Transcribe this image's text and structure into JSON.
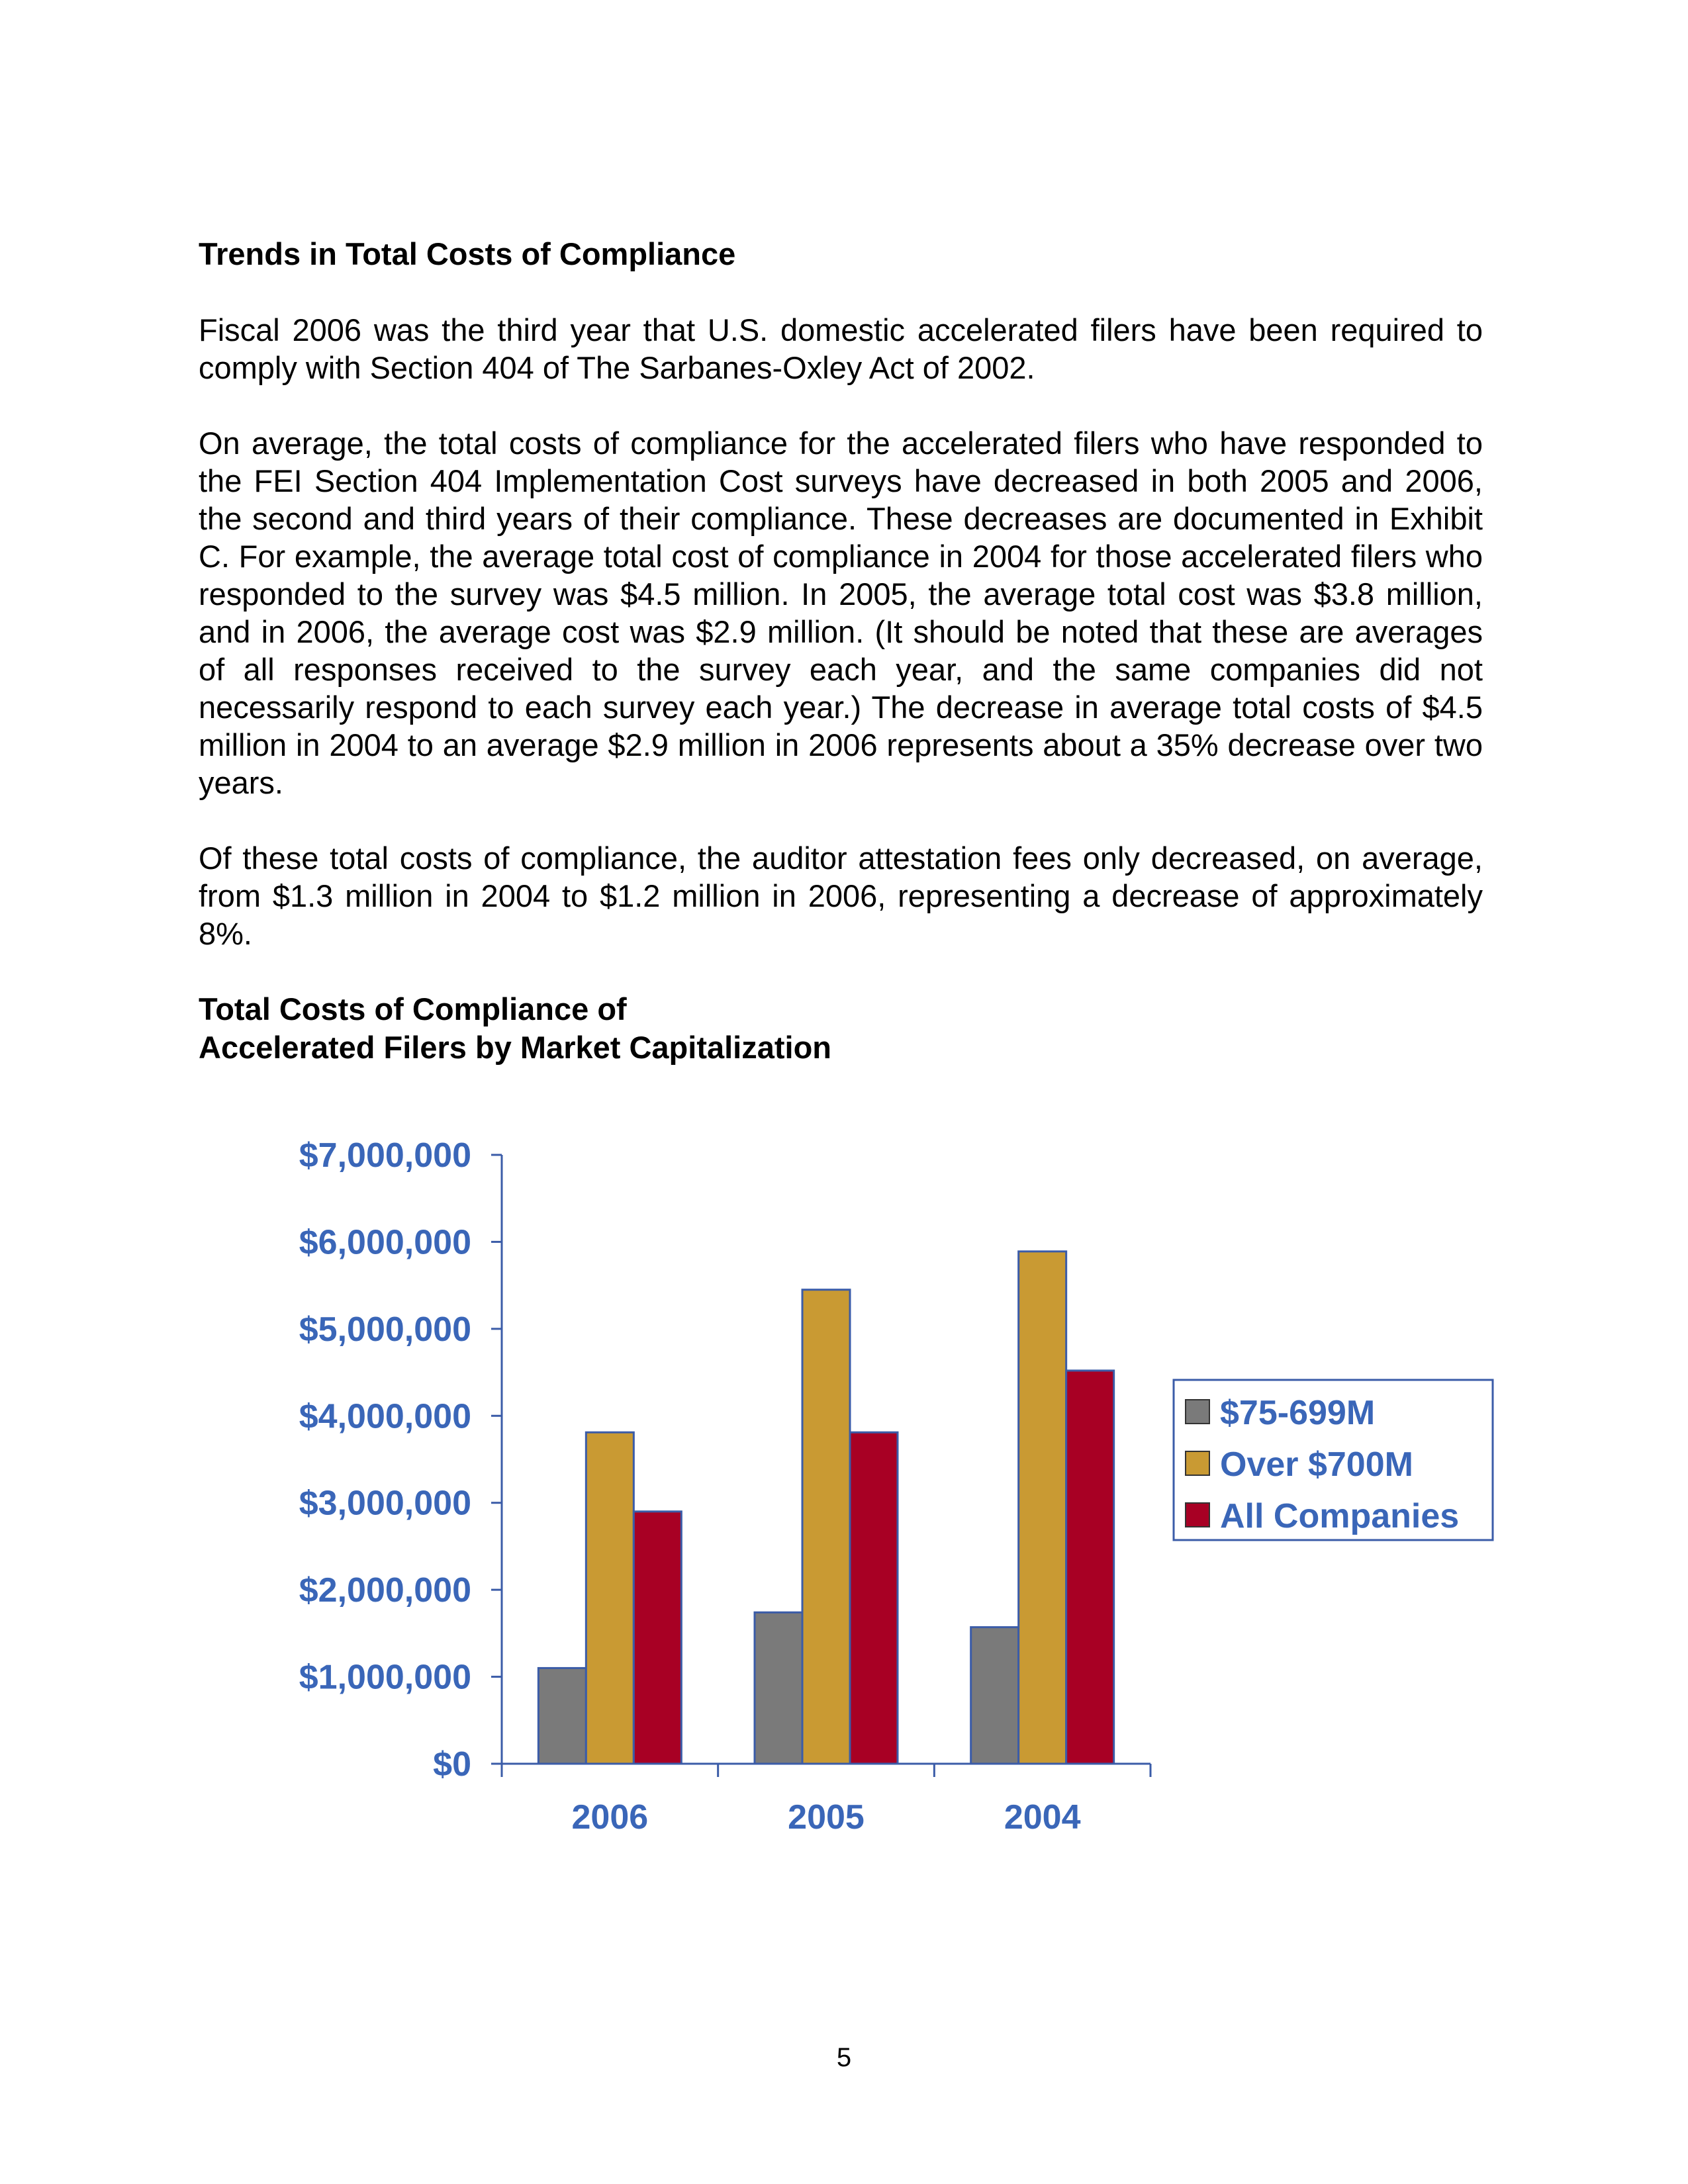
{
  "section_heading": "Trends in Total Costs of Compliance",
  "paragraphs": [
    "Fiscal 2006 was the third year that U.S. domestic accelerated filers have been required to comply with Section 404 of The Sarbanes-Oxley Act of 2002.",
    "On average, the total costs of compliance for the accelerated filers who have responded to the FEI Section 404 Implementation Cost surveys have decreased in both 2005 and 2006, the second and third years of their compliance. These decreases are documented in Exhibit C. For example, the average total cost of compliance in 2004 for those accelerated filers who responded to the survey was $4.5 million. In 2005, the average total cost was $3.8 million, and in 2006, the average cost was $2.9 million. (It should be noted that these are averages of all responses received to the survey each year, and the same companies did not necessarily respond to each survey each year.) The decrease in average total costs of $4.5 million in 2004 to an average $2.9 million in 2006 represents about a 35% decrease over two years.",
    "Of these total costs of compliance, the auditor attestation fees only decreased, on average, from $1.3 million in 2004 to $1.2 million in 2006, representing a decrease of approximately 8%."
  ],
  "chart_heading_line1": "Total Costs of Compliance of",
  "chart_heading_line2": "Accelerated Filers by Market Capitalization",
  "page_number": "5",
  "chart_data": {
    "type": "bar",
    "title": "",
    "xlabel": "",
    "ylabel": "",
    "categories": [
      "2006",
      "2005",
      "2004"
    ],
    "ylim": [
      0,
      7000000
    ],
    "yticks": [
      0,
      1000000,
      2000000,
      3000000,
      4000000,
      5000000,
      6000000,
      7000000
    ],
    "ytick_labels": [
      "$0",
      "$1,000,000",
      "$2,000,000",
      "$3,000,000",
      "$4,000,000",
      "$5,000,000",
      "$6,000,000",
      "$7,000,000"
    ],
    "grid": false,
    "legend_position": "right",
    "series": [
      {
        "name": "$75-699M",
        "color": "#7a7a7a",
        "values": [
          1100000,
          1740000,
          1570000
        ]
      },
      {
        "name": "Over $700M",
        "color": "#c99a33",
        "values": [
          3810000,
          5450000,
          5890000
        ]
      },
      {
        "name": "All Companies",
        "color": "#a80024",
        "values": [
          2900000,
          3810000,
          4520000
        ]
      }
    ],
    "axis_text_color": "#3a66b8",
    "bar_outline_color": "#3b5ca8"
  }
}
